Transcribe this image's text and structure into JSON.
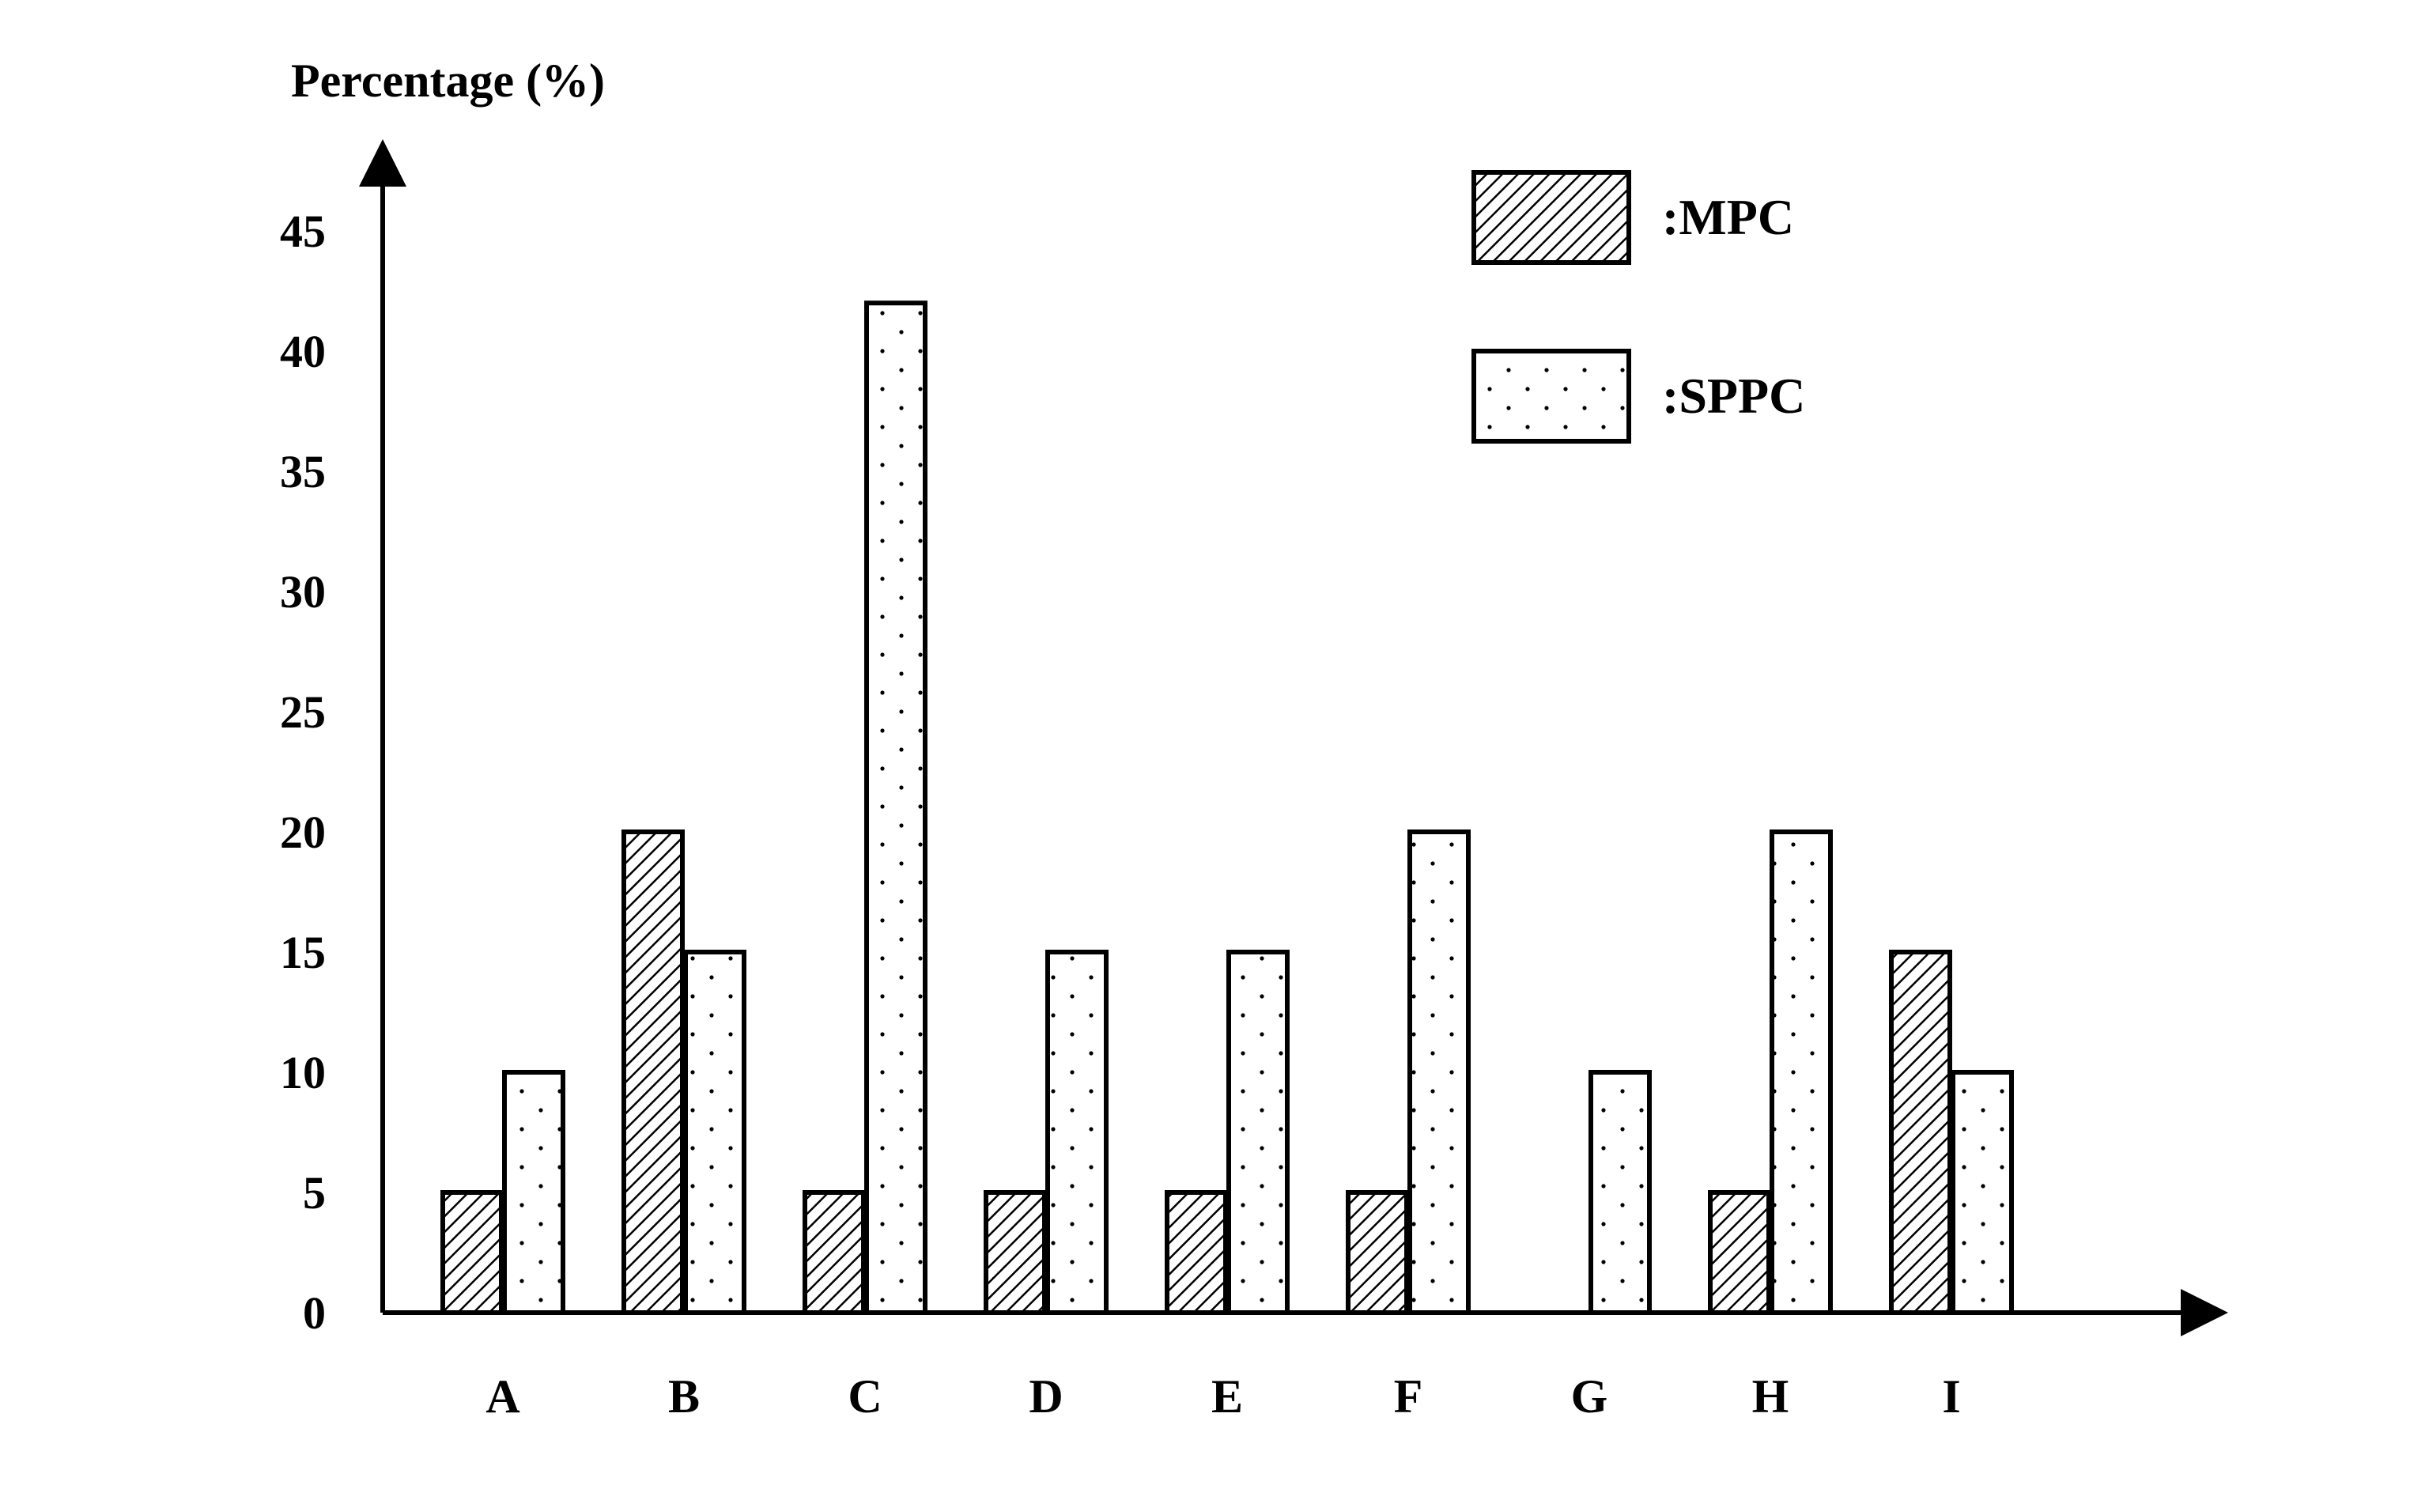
{
  "chart_data": {
    "type": "bar",
    "ylabel": "Percentage (%)",
    "xlabel": "",
    "categories": [
      "A",
      "B",
      "C",
      "D",
      "E",
      "F",
      "G",
      "H",
      "I"
    ],
    "series": [
      {
        "name": ":MPC",
        "pattern": "diagonal-hatch",
        "values": [
          5,
          20,
          5,
          5,
          5,
          5,
          0,
          5,
          15
        ]
      },
      {
        "name": ":SPPC",
        "pattern": "dots",
        "values": [
          10,
          15,
          42,
          15,
          15,
          20,
          10,
          20,
          10
        ]
      }
    ],
    "yticks": [
      0,
      5,
      10,
      15,
      20,
      25,
      30,
      35,
      40,
      45
    ],
    "ylim": [
      0,
      45
    ],
    "grid": false,
    "legend_position": "top-right",
    "colors": {
      "stroke": "#000000",
      "background": "#ffffff"
    }
  }
}
